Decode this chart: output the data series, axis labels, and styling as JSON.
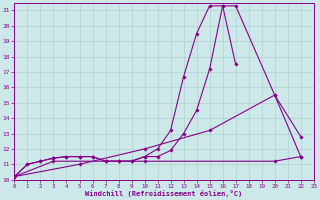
{
  "xlabel": "Windchill (Refroidissement éolien,°C)",
  "bg_color": "#cce8e8",
  "line_color": "#880088",
  "grid_color": "#aacccc",
  "xlim": [
    0,
    23
  ],
  "ylim": [
    10,
    21.5
  ],
  "xticks": [
    0,
    1,
    2,
    3,
    4,
    5,
    6,
    7,
    8,
    9,
    10,
    11,
    12,
    13,
    14,
    15,
    16,
    17,
    18,
    19,
    20,
    21,
    22,
    23
  ],
  "yticks": [
    10,
    11,
    12,
    13,
    14,
    15,
    16,
    17,
    18,
    19,
    20,
    21
  ],
  "curves": [
    {
      "x": [
        0,
        1,
        2,
        3,
        4,
        5,
        6,
        7,
        8,
        9,
        10,
        11,
        12,
        13,
        14,
        15,
        16,
        17
      ],
      "y": [
        10.2,
        11.0,
        11.2,
        11.4,
        11.5,
        11.5,
        11.5,
        11.2,
        11.2,
        11.2,
        11.5,
        12.0,
        13.2,
        16.7,
        19.5,
        21.3,
        21.3,
        17.5
      ]
    },
    {
      "x": [
        0,
        1,
        2,
        3,
        4,
        5,
        6,
        7,
        8,
        9,
        10,
        11,
        12,
        13,
        14,
        15,
        16,
        17,
        20,
        22
      ],
      "y": [
        10.2,
        11.0,
        11.2,
        11.4,
        11.5,
        11.5,
        11.5,
        11.2,
        11.2,
        11.2,
        11.5,
        11.5,
        11.9,
        13.0,
        14.5,
        17.2,
        21.3,
        21.3,
        15.5,
        12.8
      ]
    },
    {
      "x": [
        0,
        5,
        10,
        15,
        20,
        22
      ],
      "y": [
        10.2,
        11.0,
        12.0,
        13.2,
        15.5,
        11.5
      ]
    },
    {
      "x": [
        0,
        3,
        7,
        10,
        20,
        22
      ],
      "y": [
        10.2,
        11.2,
        11.2,
        11.2,
        11.2,
        11.5
      ]
    }
  ]
}
